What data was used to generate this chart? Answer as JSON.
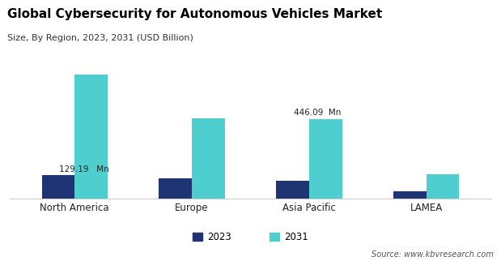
{
  "title": "Global Cybersecurity for Autonomous Vehicles Market",
  "subtitle": "Size, By Region, 2023, 2031 (USD Billion)",
  "source": "Source: www.kbvresearch.com",
  "categories": [
    "North America",
    "Europe",
    "Asia Pacific",
    "LAMEA"
  ],
  "values_2023": [
    129.19,
    112,
    100,
    38
  ],
  "values_2031": [
    700,
    450,
    446.09,
    135
  ],
  "color_2023": "#1f3473",
  "color_2031": "#4ecece",
  "ann_na_text": "129.19   Mn",
  "ann_ap_text": "446.09  Mn",
  "legend_labels": [
    "2023",
    "2031"
  ],
  "bar_width": 0.28,
  "ylim": [
    0,
    780
  ],
  "bg_color": "#ffffff",
  "spine_color": "#cccccc",
  "title_fontsize": 11,
  "subtitle_fontsize": 8,
  "source_fontsize": 7,
  "tick_fontsize": 8.5,
  "legend_fontsize": 8.5,
  "ann_fontsize": 7.5
}
